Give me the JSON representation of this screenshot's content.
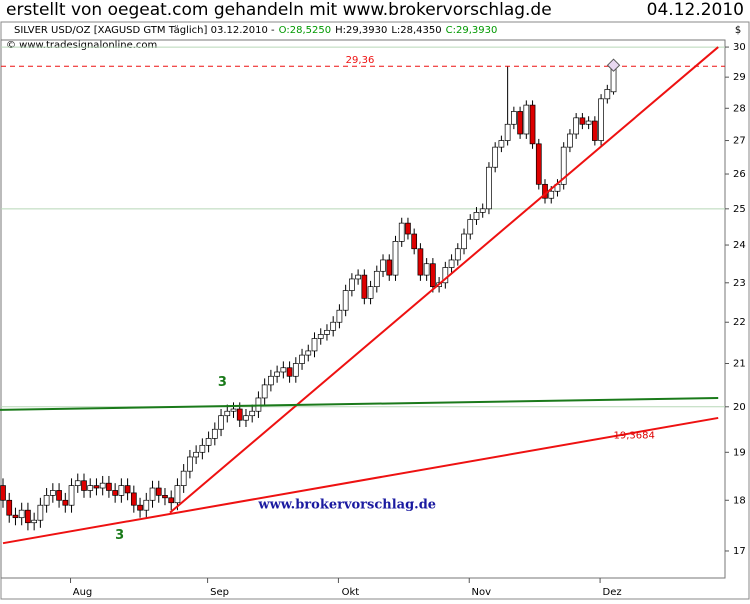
{
  "header": {
    "title": "erstellt von oegeat.com gehandeln mit www.brokervorschlag.de",
    "date": "04.12.2010"
  },
  "chart_data": {
    "type": "candlestick",
    "title": "SILVER USD/OZ [XAGUSD GTM  Täglich] 03.12.2010 -",
    "ohlc_labels": [
      {
        "text": "O:28,5250",
        "color": "#009900"
      },
      {
        "text": "H:29,3930",
        "color": "#000000"
      },
      {
        "text": "L:28,4350",
        "color": "#000000"
      },
      {
        "text": "C:29,3930",
        "color": "#009900"
      }
    ],
    "source": "© www.tradesignalonline.com",
    "y_unit": "$",
    "categories": [
      null,
      null,
      null,
      null,
      null,
      null,
      null,
      null,
      null,
      null,
      null,
      "Aug",
      null,
      null,
      null,
      null,
      null,
      null,
      null,
      null,
      null,
      null,
      null,
      null,
      null,
      null,
      null,
      null,
      null,
      null,
      null,
      null,
      null,
      "Sep",
      null,
      null,
      null,
      null,
      null,
      null,
      null,
      null,
      null,
      null,
      null,
      null,
      null,
      null,
      null,
      null,
      null,
      null,
      null,
      null,
      "Okt",
      null,
      null,
      null,
      null,
      null,
      null,
      null,
      null,
      null,
      null,
      null,
      null,
      null,
      null,
      null,
      null,
      null,
      null,
      null,
      null,
      "Nov",
      null,
      null,
      null,
      null,
      null,
      null,
      null,
      null,
      null,
      null,
      null,
      null,
      null,
      null,
      null,
      null,
      null,
      null,
      null,
      null,
      "Dez",
      null,
      null
    ],
    "open": [
      18.3,
      18.0,
      17.7,
      17.65,
      17.8,
      17.55,
      17.6,
      17.9,
      18.1,
      18.2,
      18.0,
      17.9,
      18.3,
      18.4,
      18.2,
      18.3,
      18.25,
      18.35,
      18.2,
      18.1,
      18.3,
      18.15,
      17.9,
      17.8,
      18.0,
      18.25,
      18.1,
      18.05,
      17.95,
      18.3,
      18.6,
      18.9,
      19.0,
      19.15,
      19.3,
      19.5,
      19.8,
      19.9,
      19.95,
      19.7,
      19.8,
      19.9,
      20.2,
      20.5,
      20.7,
      20.8,
      20.9,
      20.7,
      21.0,
      21.2,
      21.3,
      21.6,
      21.7,
      21.8,
      22.0,
      22.3,
      22.8,
      23.1,
      23.2,
      22.6,
      22.9,
      23.3,
      23.6,
      23.2,
      24.1,
      24.6,
      24.3,
      23.9,
      23.2,
      23.5,
      22.9,
      23.0,
      23.4,
      23.6,
      23.9,
      24.3,
      24.7,
      24.9,
      25.0,
      26.2,
      26.8,
      27.0,
      27.5,
      27.9,
      27.2,
      28.1,
      26.9,
      25.7,
      25.3,
      25.5,
      25.7,
      26.8,
      27.2,
      27.7,
      27.5,
      27.6,
      27.0,
      28.3,
      28.525
    ],
    "high": [
      18.45,
      18.15,
      17.85,
      17.95,
      17.95,
      17.75,
      18.05,
      18.25,
      18.35,
      18.35,
      18.15,
      18.45,
      18.55,
      18.55,
      18.45,
      18.45,
      18.5,
      18.5,
      18.35,
      18.45,
      18.45,
      18.3,
      18.05,
      18.15,
      18.4,
      18.4,
      18.25,
      18.2,
      18.45,
      18.75,
      19.05,
      19.15,
      19.3,
      19.45,
      19.65,
      19.95,
      20.05,
      20.1,
      20.1,
      19.95,
      20.05,
      20.35,
      20.65,
      20.85,
      20.95,
      21.05,
      21.05,
      21.15,
      21.35,
      21.45,
      21.75,
      21.85,
      21.95,
      22.15,
      22.45,
      22.95,
      23.25,
      23.35,
      23.35,
      23.05,
      23.45,
      23.75,
      23.75,
      24.25,
      24.75,
      24.75,
      24.45,
      24.05,
      23.65,
      23.65,
      23.15,
      23.55,
      23.75,
      24.05,
      24.45,
      24.85,
      25.05,
      25.15,
      26.35,
      26.95,
      27.15,
      29.36,
      28.05,
      28.05,
      28.25,
      28.25,
      27.05,
      25.85,
      25.65,
      25.85,
      26.95,
      27.35,
      27.85,
      27.85,
      27.75,
      27.75,
      28.45,
      28.75,
      29.393
    ],
    "low": [
      17.85,
      17.55,
      17.5,
      17.5,
      17.4,
      17.4,
      17.45,
      17.75,
      17.95,
      17.85,
      17.75,
      17.75,
      18.15,
      18.05,
      18.05,
      18.1,
      18.1,
      18.05,
      17.95,
      17.95,
      18.0,
      17.75,
      17.65,
      17.65,
      17.85,
      17.95,
      17.9,
      17.8,
      17.8,
      18.15,
      18.45,
      18.75,
      18.85,
      19.0,
      19.15,
      19.35,
      19.65,
      19.75,
      19.55,
      19.55,
      19.65,
      19.75,
      20.05,
      20.35,
      20.55,
      20.65,
      20.55,
      20.55,
      20.85,
      21.05,
      21.15,
      21.45,
      21.55,
      21.65,
      21.85,
      22.15,
      22.65,
      22.95,
      22.45,
      22.45,
      22.75,
      23.15,
      23.05,
      23.05,
      23.95,
      24.15,
      23.75,
      23.05,
      23.05,
      22.75,
      22.75,
      22.85,
      23.25,
      23.45,
      23.75,
      24.15,
      24.55,
      24.75,
      24.85,
      26.05,
      26.65,
      26.85,
      27.35,
      27.05,
      27.05,
      26.75,
      25.55,
      25.15,
      25.15,
      25.35,
      25.55,
      26.65,
      27.05,
      27.35,
      27.35,
      26.85,
      26.85,
      28.15,
      28.435
    ],
    "close": [
      18.0,
      17.7,
      17.65,
      17.8,
      17.55,
      17.6,
      17.9,
      18.1,
      18.2,
      18.0,
      17.9,
      18.3,
      18.4,
      18.2,
      18.3,
      18.25,
      18.35,
      18.2,
      18.1,
      18.3,
      18.15,
      17.9,
      17.8,
      18.0,
      18.25,
      18.1,
      18.05,
      17.95,
      18.3,
      18.6,
      18.9,
      19.0,
      19.15,
      19.3,
      19.5,
      19.8,
      19.9,
      19.95,
      19.7,
      19.8,
      19.9,
      20.2,
      20.5,
      20.7,
      20.8,
      20.9,
      20.7,
      21.0,
      21.2,
      21.3,
      21.6,
      21.7,
      21.8,
      22.0,
      22.3,
      22.8,
      23.1,
      23.2,
      22.6,
      22.9,
      23.3,
      23.6,
      23.2,
      24.1,
      24.6,
      24.3,
      23.9,
      23.2,
      23.5,
      22.9,
      23.0,
      23.4,
      23.6,
      23.9,
      24.3,
      24.7,
      24.9,
      25.0,
      26.2,
      26.8,
      27.0,
      27.5,
      27.9,
      27.2,
      28.1,
      26.9,
      25.7,
      25.3,
      25.5,
      25.7,
      26.8,
      27.2,
      27.7,
      27.5,
      27.6,
      27.0,
      28.3,
      28.6,
      29.393
    ],
    "up_color": "#ffffff",
    "down_color": "#dd0000",
    "log_scale": true,
    "ylim": [
      16.49,
      30.24
    ],
    "yticks": [
      17,
      18,
      19,
      20,
      21,
      22,
      23,
      24,
      25,
      26,
      27,
      28,
      29,
      30
    ],
    "grid_lines": [
      20,
      25,
      30
    ],
    "trendlines": [
      {
        "color": "#ee1111",
        "x": [
          0,
          114.8
        ],
        "y": [
          17.15,
          19.75
        ]
      },
      {
        "color": "#ee1111",
        "x": [
          26.8,
          114.8
        ],
        "y": [
          17.75,
          30.0
        ]
      },
      {
        "color": "#1a7a1a",
        "x": [
          -0.5,
          114.8
        ],
        "y": [
          19.93,
          20.2
        ]
      }
    ],
    "levels": [
      {
        "value": 29.36,
        "label": "29,36",
        "color": "#ee1111"
      }
    ],
    "annotations": [
      {
        "text": "19,3684",
        "x": 98,
        "y": 19.3684,
        "color": "#dd0000"
      },
      {
        "text": "3",
        "x": 34.5,
        "y": 20.55,
        "color": "#1a7a1a"
      },
      {
        "text": "3",
        "x": 18,
        "y": 17.3,
        "color": "#1a7a1a"
      },
      {
        "text": "www.brokervorschlag.de",
        "x": 41,
        "y": 17.9,
        "color": "#1a1aa0"
      }
    ]
  }
}
